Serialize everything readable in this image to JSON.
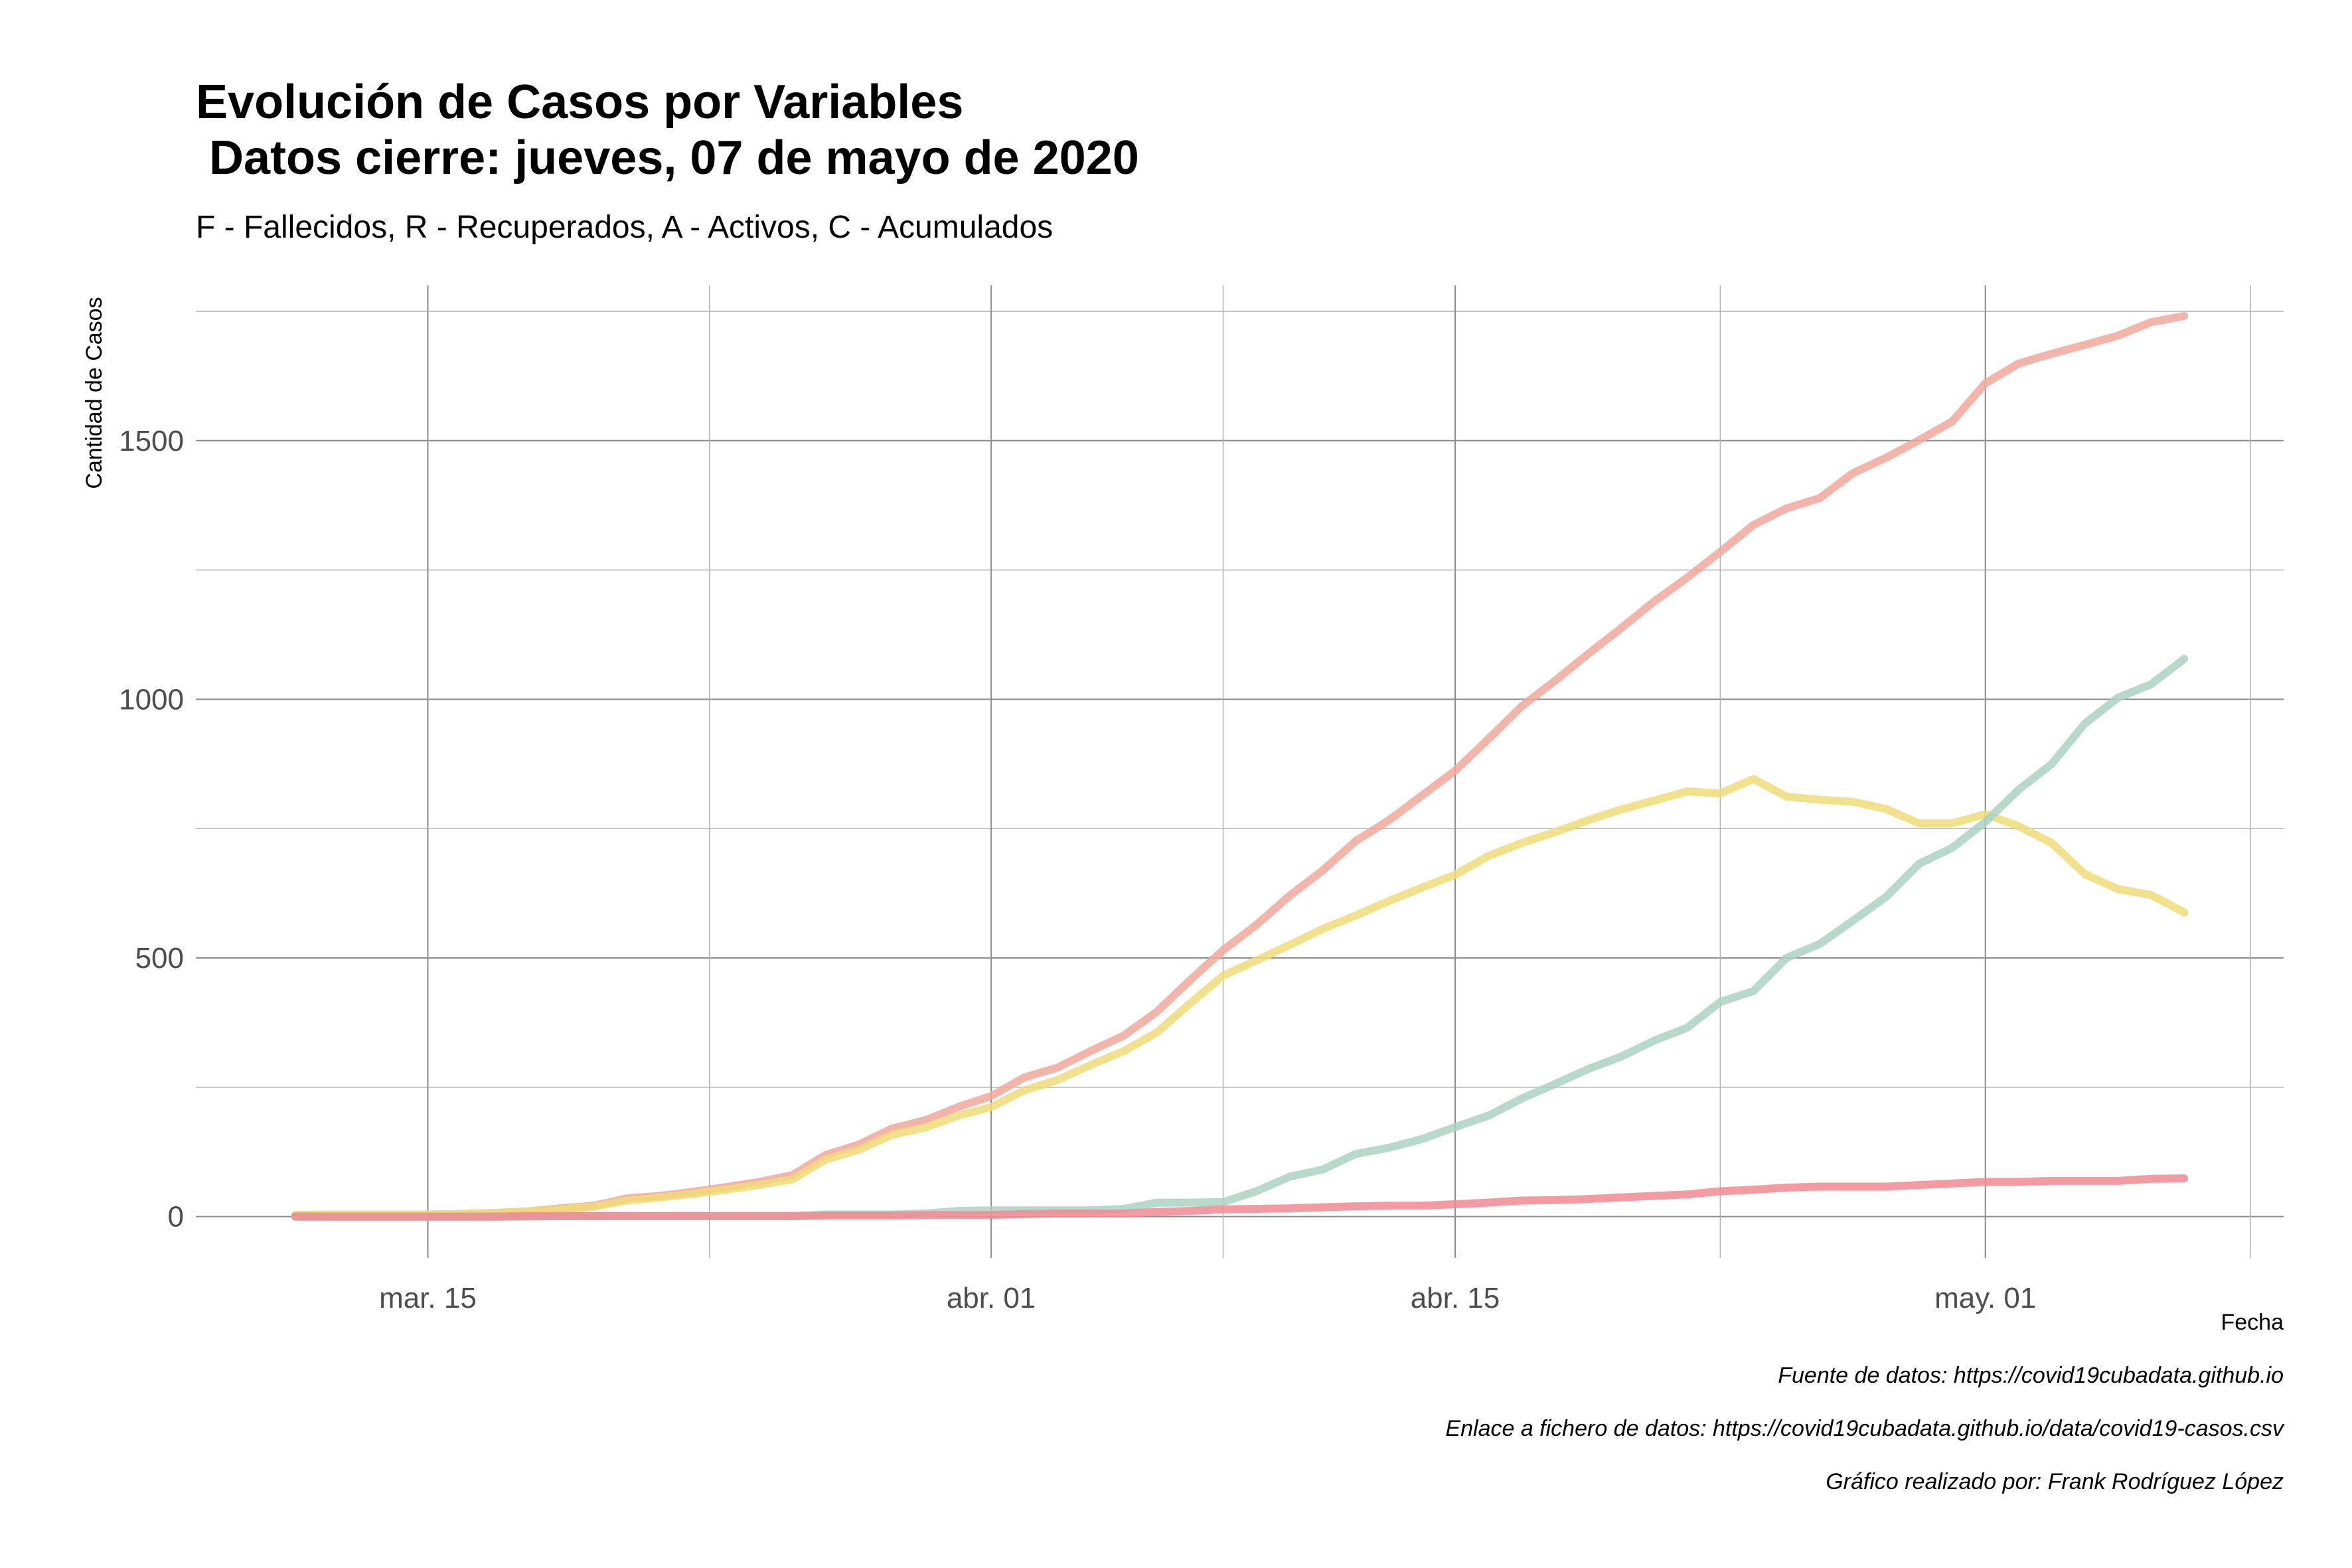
{
  "colors": {
    "accumulated": "#f1a89a",
    "active": "#f0dc78",
    "recovered": "#aad2c2",
    "deceased": "#f28a92"
  },
  "chart_data": {
    "type": "line",
    "title": "Evolución de Casos por Variables",
    "title_line2": " Datos cierre: jueves, 07 de mayo de 2020",
    "subtitle": "F - Fallecidos, R - Recuperados, A - Activos, C - Acumulados",
    "xlabel": "Fecha",
    "ylabel": "Cantidad de Casos",
    "x_start": "2020-03-11",
    "x_end": "2020-05-07",
    "xlim": [
      "2020-03-08",
      "2020-05-10"
    ],
    "ylim": [
      -80,
      1800
    ],
    "y_ticks": [
      0,
      500,
      1000,
      1500
    ],
    "y_tick_labels": [
      "0",
      "500",
      "1000",
      "1500"
    ],
    "x_ticks": [
      "2020-03-15",
      "2020-04-01",
      "2020-04-15",
      "2020-05-01"
    ],
    "x_tick_labels": [
      "mar. 15",
      "abr. 01",
      "abr. 15",
      "may. 01"
    ],
    "grid": true,
    "legend": "none",
    "series": [
      {
        "key": "accumulated",
        "values": [
          3,
          4,
          4,
          4,
          4,
          5,
          7,
          10,
          16,
          21,
          35,
          40,
          48,
          57,
          67,
          80,
          119,
          139,
          170,
          186,
          212,
          233,
          269,
          288,
          320,
          350,
          396,
          457,
          515,
          564,
          620,
          669,
          726,
          766,
          814,
          862,
          923,
          986,
          1035,
          1087,
          1137,
          1189,
          1235,
          1285,
          1337,
          1369,
          1389,
          1437,
          1467,
          1501,
          1537,
          1611,
          1649,
          1668,
          1685,
          1703,
          1729,
          1741
        ]
      },
      {
        "key": "active",
        "values": [
          3,
          4,
          4,
          4,
          4,
          5,
          7,
          10,
          14,
          19,
          31,
          37,
          44,
          52,
          61,
          72,
          110,
          129,
          158,
          172,
          195,
          212,
          244,
          264,
          293,
          320,
          356,
          412,
          466,
          495,
          525,
          556,
          582,
          610,
          636,
          661,
          697,
          722,
          743,
          766,
          787,
          804,
          822,
          818,
          846,
          812,
          806,
          802,
          788,
          760,
          760,
          778,
          755,
          722,
          662,
          633,
          622,
          588
        ]
      },
      {
        "key": "recovered",
        "values": [
          0,
          0,
          0,
          0,
          0,
          0,
          0,
          0,
          1,
          1,
          1,
          1,
          1,
          1,
          1,
          1,
          4,
          4,
          4,
          6,
          11,
          12,
          12,
          12,
          12,
          15,
          27,
          27,
          28,
          49,
          77,
          91,
          121,
          133,
          150,
          173,
          195,
          228,
          256,
          285,
          309,
          340,
          365,
          415,
          436,
          500,
          527,
          572,
          618,
          682,
          713,
          763,
          825,
          875,
          953,
          1003,
          1029,
          1078
        ]
      },
      {
        "key": "deceased",
        "values": [
          0,
          0,
          0,
          0,
          0,
          0,
          0,
          1,
          1,
          1,
          1,
          1,
          1,
          1,
          1,
          1,
          2,
          2,
          2,
          3,
          3,
          3,
          5,
          6,
          6,
          6,
          9,
          11,
          14,
          15,
          16,
          18,
          20,
          21,
          21,
          24,
          27,
          31,
          32,
          34,
          37,
          40,
          43,
          49,
          52,
          56,
          58,
          58,
          58,
          61,
          64,
          67,
          67,
          69,
          69,
          69,
          73,
          74
        ]
      }
    ]
  },
  "caption": {
    "source": "Fuente de datos: https://covid19cubadata.github.io",
    "file_link": "Enlace a fichero de datos: https://covid19cubadata.github.io/data/covid19-casos.csv",
    "author": "Gráfico realizado por: Frank Rodríguez López"
  }
}
